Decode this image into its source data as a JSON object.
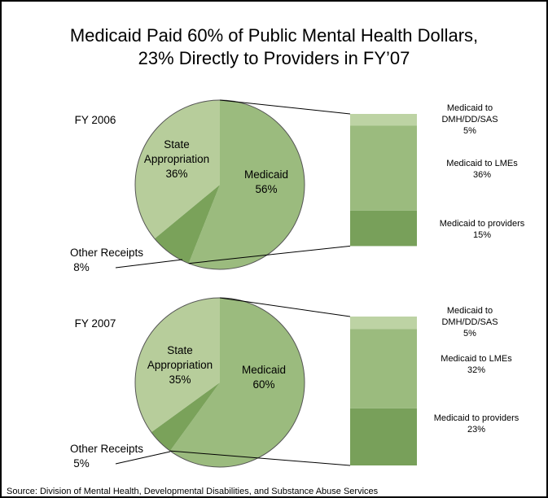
{
  "title": [
    "Medicaid Paid 60% of Public Mental Health Dollars,",
    "23% Directly to Providers in FY’07"
  ],
  "source": "Source: Division of Mental Health, Developmental Disabilities, and Substance Abuse Services",
  "chart_data": [
    {
      "type": "pie",
      "subtitle": "FY 2006",
      "categories": [
        "Medicaid",
        "Other Receipts",
        "State Appropriation"
      ],
      "values": [
        56,
        8,
        36
      ],
      "value_labels": [
        "56%",
        "8%",
        "36%"
      ],
      "colors": [
        "#9bbb7e",
        "#7aa25a",
        "#b7cd9b"
      ],
      "breakdown": {
        "categories": [
          "Medicaid to DMH/DD/SAS",
          "Medicaid to LMEs",
          "Medicaid to providers"
        ],
        "values": [
          5,
          36,
          15
        ],
        "value_labels": [
          "5%",
          "36%",
          "15%"
        ],
        "colors": [
          "#bdd3a4",
          "#9bbb7e",
          "#78a05a"
        ]
      }
    },
    {
      "type": "pie",
      "subtitle": "FY 2007",
      "categories": [
        "Medicaid",
        "Other Receipts",
        "State Appropriation"
      ],
      "values": [
        60,
        5,
        35
      ],
      "value_labels": [
        "60%",
        "5%",
        "35%"
      ],
      "colors": [
        "#9bbb7e",
        "#7aa25a",
        "#b7cd9b"
      ],
      "breakdown": {
        "categories": [
          "Medicaid to DMH/DD/SAS",
          "Medicaid to LMEs",
          "Medicaid to providers"
        ],
        "values": [
          5,
          32,
          23
        ],
        "value_labels": [
          "5%",
          "32%",
          "23%"
        ],
        "colors": [
          "#bdd3a4",
          "#9bbb7e",
          "#78a05a"
        ]
      }
    }
  ]
}
